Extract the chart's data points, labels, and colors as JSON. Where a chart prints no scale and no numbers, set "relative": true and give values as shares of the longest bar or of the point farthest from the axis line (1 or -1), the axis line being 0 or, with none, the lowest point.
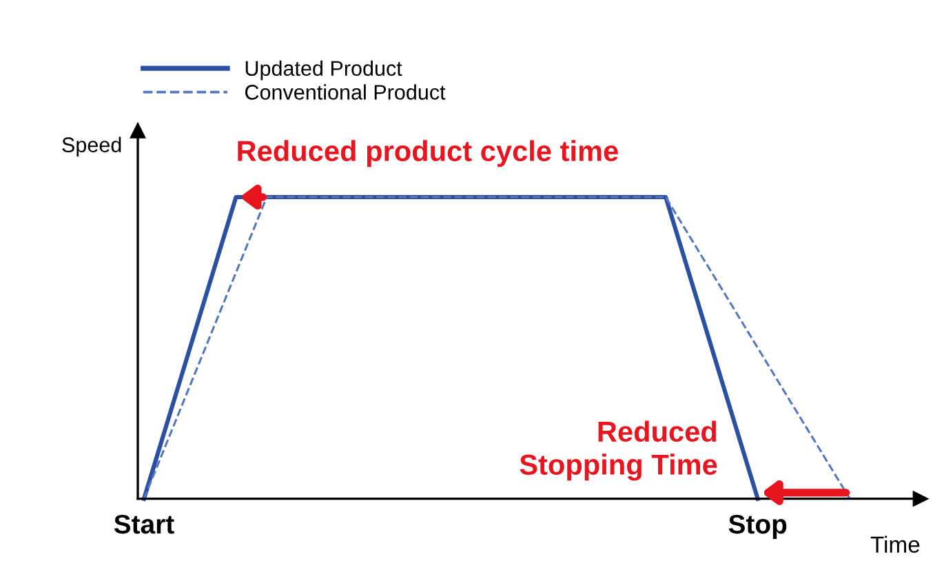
{
  "chart_data": {
    "type": "line",
    "relative": true,
    "xlabel": "Time",
    "ylabel": "Speed",
    "categories": [
      "Start",
      null,
      null,
      null,
      null,
      null,
      null,
      null,
      null,
      null,
      null,
      null,
      null,
      null,
      null,
      null,
      null,
      null,
      null,
      null,
      "Stop",
      null,
      null,
      null,
      null,
      null
    ],
    "series": [
      {
        "name": "Updated Product",
        "color": "#2b4fa3",
        "line_style": "solid",
        "values": [
          0,
          0.333,
          0.667,
          1,
          1,
          1,
          1,
          1,
          1,
          1,
          1,
          1,
          1,
          1,
          1,
          1,
          1,
          1,
          0.667,
          0.333,
          0,
          null,
          null,
          null,
          null,
          null
        ]
      },
      {
        "name": "Conventional Product",
        "color": "#5577c0",
        "line_style": "dashed",
        "values": [
          0,
          0.25,
          0.5,
          0.75,
          1,
          1,
          1,
          1,
          1,
          1,
          1,
          1,
          1,
          1,
          1,
          1,
          1,
          1,
          0.833,
          0.667,
          0.5,
          0.333,
          0.167,
          0,
          null,
          null
        ]
      }
    ],
    "annotations": [
      "Reduced product cycle time",
      "Reduced\nStopping Time"
    ],
    "legend": "top",
    "grid": false,
    "marker": "none"
  }
}
